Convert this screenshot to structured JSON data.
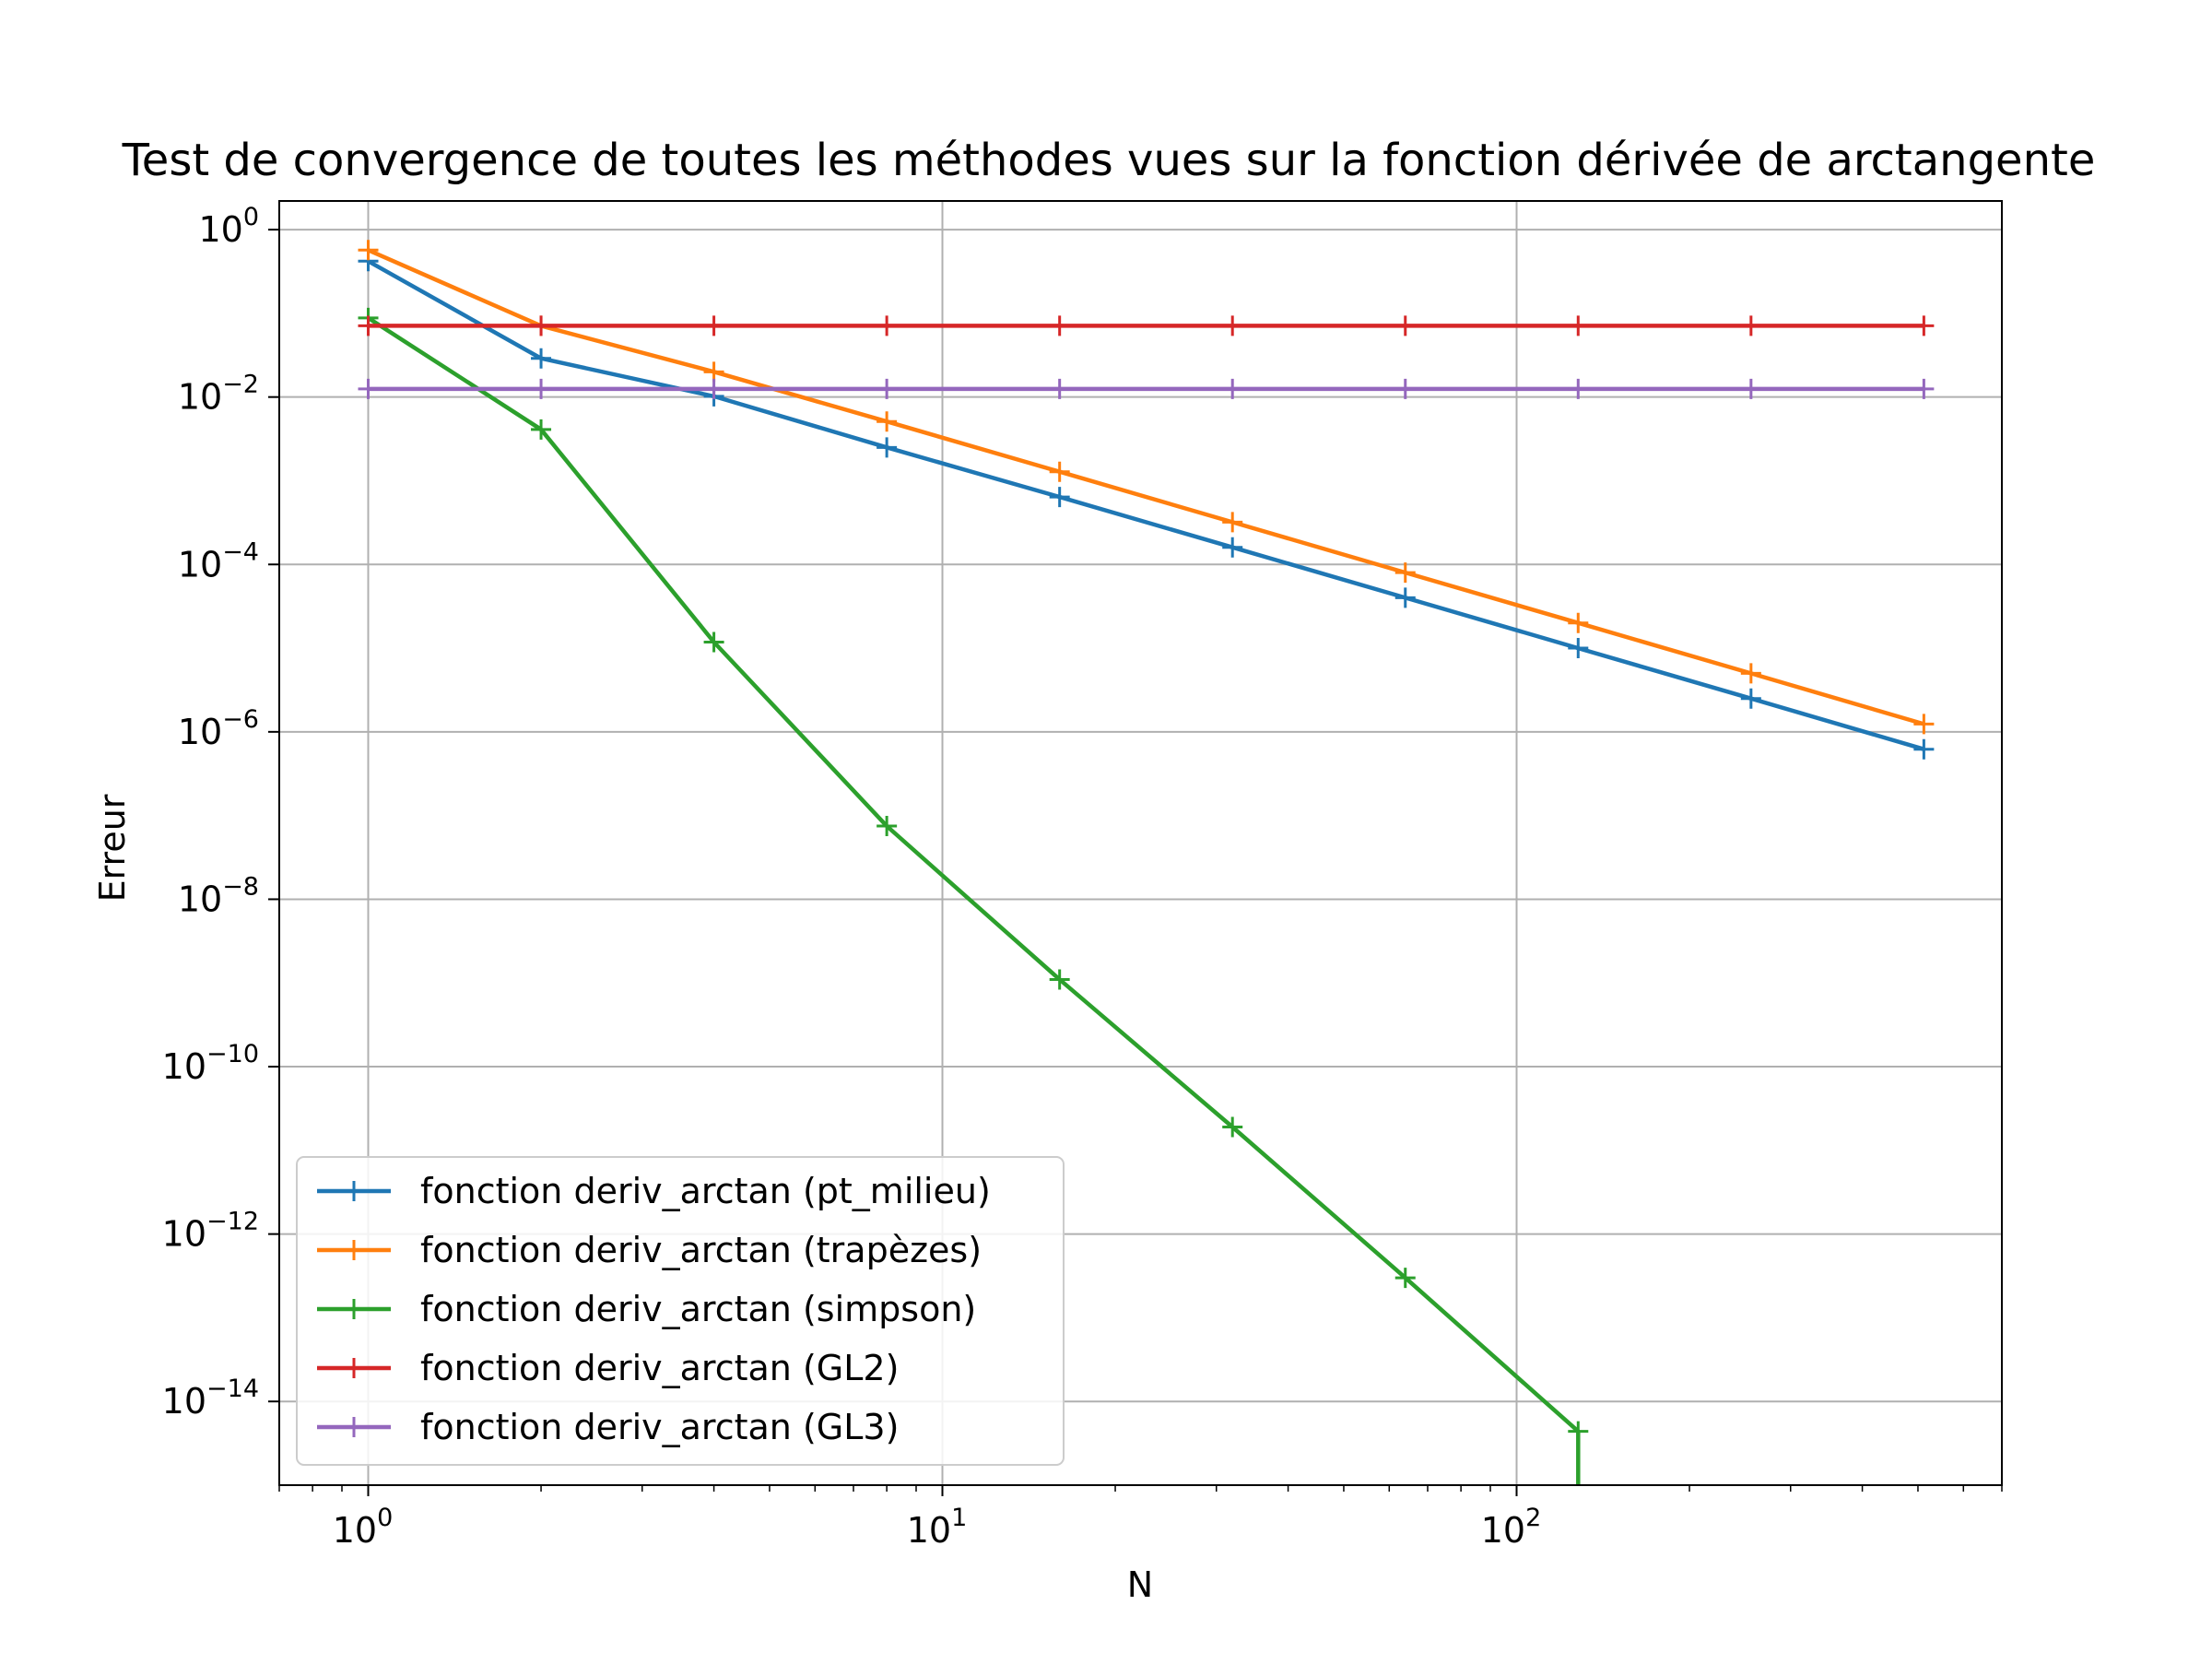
{
  "chart_data": {
    "type": "line",
    "title": "Test de convergence de toutes les méthodes vues sur la fonction dérivée de arctangente",
    "xlabel": "N",
    "ylabel": "Erreur",
    "xscale": "log",
    "yscale": "log",
    "xlim": [
      0.7,
      700
    ],
    "ylim": [
      1e-15,
      2.2
    ],
    "grid": true,
    "legend_position": "lower-left",
    "x_ticks": [
      {
        "value": 1,
        "base": "10",
        "exp": "0"
      },
      {
        "value": 10,
        "base": "10",
        "exp": "1"
      },
      {
        "value": 100,
        "base": "10",
        "exp": "2"
      }
    ],
    "y_ticks": [
      {
        "value": 1,
        "base": "10",
        "exp": "0"
      },
      {
        "value": 0.01,
        "base": "10",
        "exp": "−2"
      },
      {
        "value": 0.0001,
        "base": "10",
        "exp": "−4"
      },
      {
        "value": 1e-06,
        "base": "10",
        "exp": "−6"
      },
      {
        "value": 1e-08,
        "base": "10",
        "exp": "−8"
      },
      {
        "value": 1e-10,
        "base": "10",
        "exp": "−10"
      },
      {
        "value": 1e-12,
        "base": "10",
        "exp": "−12"
      },
      {
        "value": 1e-14,
        "base": "10",
        "exp": "−14"
      }
    ],
    "x": [
      1,
      2,
      4,
      8,
      16,
      32,
      64,
      128,
      256,
      512
    ],
    "series": [
      {
        "name": "fonction deriv_arctan (pt_milieu)",
        "color": "#1f77b4",
        "values": [
          0.42,
          0.029,
          0.0102,
          0.0025,
          0.00064,
          0.00016,
          4e-05,
          1e-05,
          2.5e-06,
          6.2e-07
        ]
      },
      {
        "name": "fonction deriv_arctan (trapèzes)",
        "color": "#ff7f0e",
        "values": [
          0.57,
          0.071,
          0.02,
          0.0051,
          0.00128,
          0.00032,
          8e-05,
          2e-05,
          5e-06,
          1.24e-06
        ]
      },
      {
        "name": "fonction deriv_arctan (simpson)",
        "color": "#2ca02c",
        "values": [
          0.088,
          0.0041,
          1.18e-05,
          7.5e-08,
          1.1e-09,
          1.9e-11,
          3e-13,
          4.4e-15,
          null,
          null
        ],
        "drop_to_zero_after_last": true
      },
      {
        "name": "fonction deriv_arctan (GL2)",
        "color": "#d62728",
        "values": [
          0.071,
          0.071,
          0.071,
          0.071,
          0.071,
          0.071,
          0.071,
          0.071,
          0.071,
          0.071
        ]
      },
      {
        "name": "fonction deriv_arctan (GL3)",
        "color": "#9467bd",
        "values": [
          0.0125,
          0.0125,
          0.0125,
          0.0125,
          0.0125,
          0.0125,
          0.0125,
          0.0125,
          0.0125,
          0.0125
        ]
      }
    ]
  }
}
